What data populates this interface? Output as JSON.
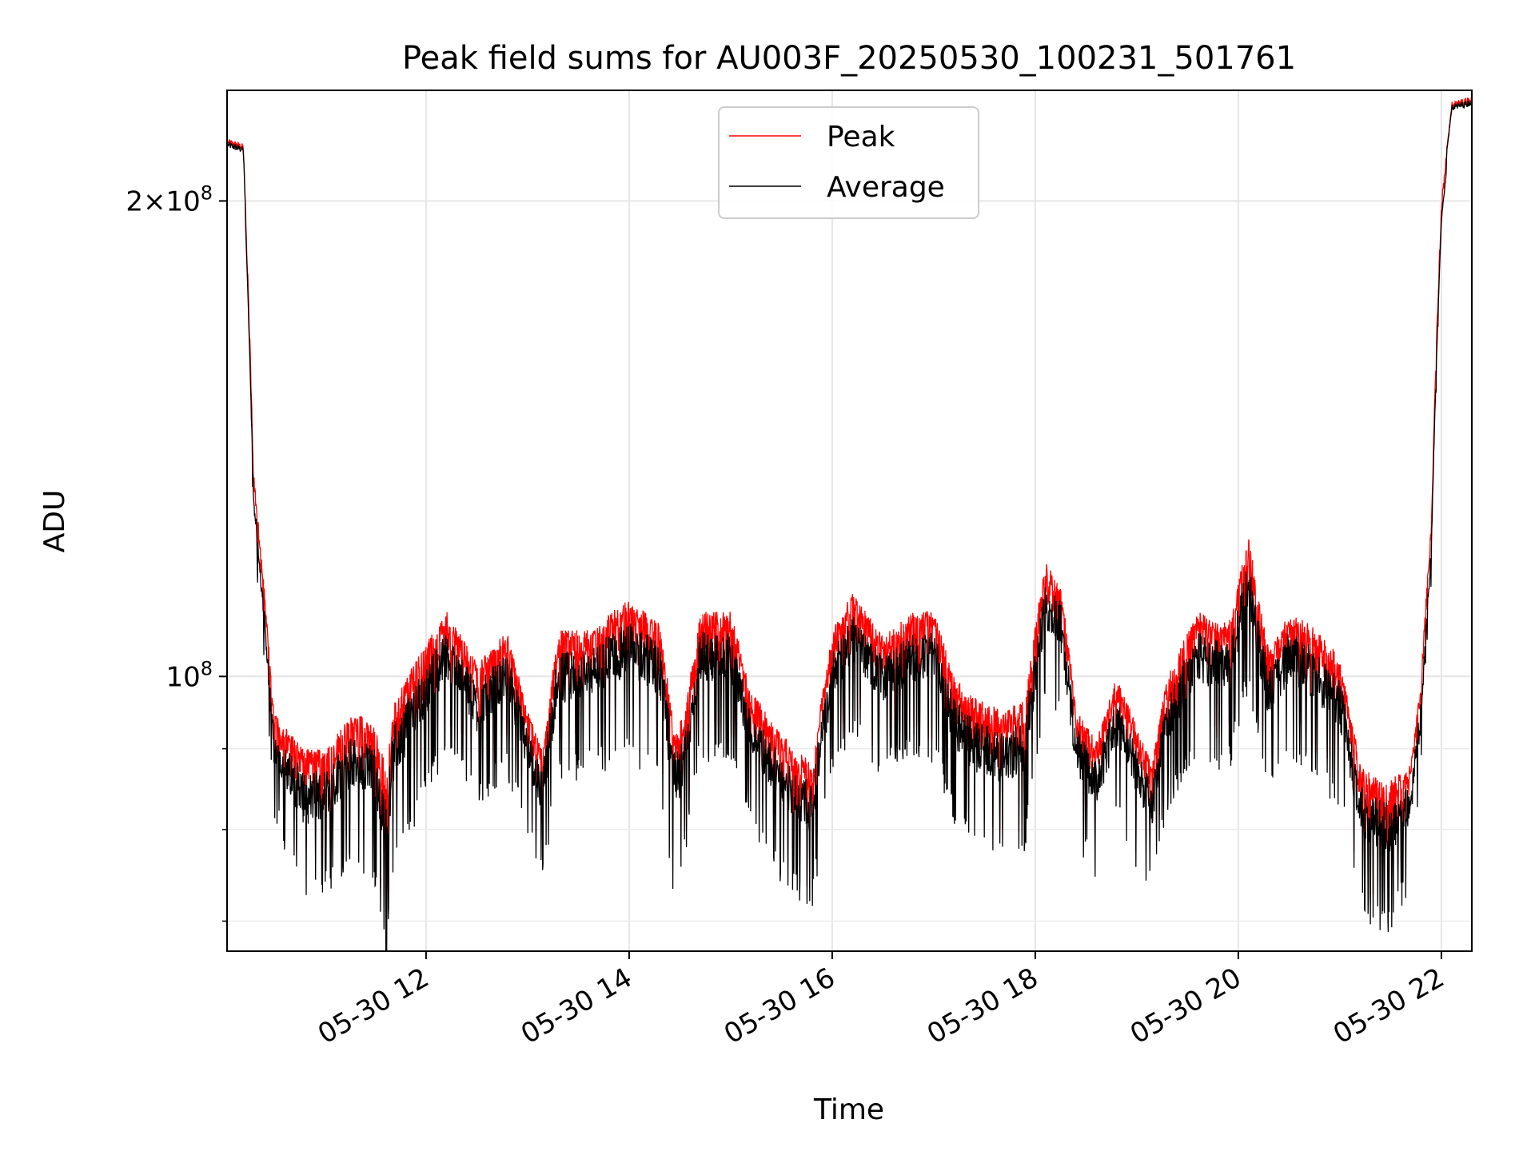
{
  "chart_data": {
    "type": "line",
    "title": "Peak field sums for AU003F_20250530_100231_501761",
    "xlabel": "Time",
    "ylabel": "ADU",
    "yscale": "log",
    "grid": true,
    "legend_position": "top-center",
    "xlim_hours": [
      10.04,
      22.3
    ],
    "ylim": [
      67000000,
      235000000
    ],
    "x_ticks": [
      {
        "value": 12,
        "label": "05-30 12"
      },
      {
        "value": 14,
        "label": "05-30 14"
      },
      {
        "value": 16,
        "label": "05-30 16"
      },
      {
        "value": 18,
        "label": "05-30 18"
      },
      {
        "value": 20,
        "label": "05-30 20"
      },
      {
        "value": 22,
        "label": "05-30 22"
      }
    ],
    "y_major_ticks": [
      {
        "value": 100000000,
        "base": "10",
        "exp": "8"
      },
      {
        "value": 200000000,
        "mant": "2",
        "base": "10",
        "exp": "8"
      }
    ],
    "y_minor_ticks": [
      70000000,
      80000000,
      90000000
    ],
    "series": [
      {
        "name": "Peak",
        "color": "#ff0000"
      },
      {
        "name": "Average",
        "color": "#000000"
      }
    ],
    "envelope": {
      "x": [
        10.05,
        10.2,
        10.3,
        10.5,
        10.8,
        11.0,
        11.3,
        11.5,
        11.6,
        11.7,
        12.0,
        12.2,
        12.5,
        12.8,
        13.0,
        13.15,
        13.3,
        13.6,
        14.0,
        14.3,
        14.45,
        14.55,
        14.7,
        15.0,
        15.2,
        15.5,
        15.8,
        16.0,
        16.2,
        16.5,
        16.8,
        17.0,
        17.2,
        17.4,
        17.7,
        17.9,
        18.1,
        18.25,
        18.4,
        18.6,
        18.8,
        19.0,
        19.15,
        19.3,
        19.6,
        19.9,
        20.1,
        20.2,
        20.3,
        20.5,
        20.7,
        21.0,
        21.2,
        21.4,
        21.5,
        21.7,
        21.8,
        21.9,
        22.0,
        22.1,
        22.3
      ],
      "peak_hi": [
        219000000,
        217000000,
        135000000,
        95000000,
        90000000,
        90000000,
        95000000,
        93000000,
        88000000,
        97000000,
        105000000,
        110000000,
        102000000,
        107000000,
        95000000,
        90000000,
        107000000,
        107000000,
        112000000,
        108000000,
        92000000,
        95000000,
        110000000,
        110000000,
        98000000,
        92000000,
        88000000,
        107000000,
        113000000,
        106000000,
        110000000,
        110000000,
        100000000,
        97000000,
        95000000,
        97000000,
        118000000,
        115000000,
        96000000,
        91000000,
        100000000,
        93000000,
        88000000,
        100000000,
        110000000,
        108000000,
        123000000,
        112000000,
        104000000,
        110000000,
        108000000,
        103000000,
        88000000,
        86000000,
        86000000,
        88000000,
        100000000,
        125000000,
        200000000,
        230000000,
        232000000
      ],
      "avg_lo": [
        215000000,
        214000000,
        125000000,
        83000000,
        72000000,
        74000000,
        77000000,
        75000000,
        67000000,
        77000000,
        85000000,
        91000000,
        84000000,
        88000000,
        80000000,
        75000000,
        87000000,
        88000000,
        90000000,
        87000000,
        72000000,
        78000000,
        90000000,
        90000000,
        82000000,
        75000000,
        72000000,
        88000000,
        93000000,
        88000000,
        90000000,
        90000000,
        82000000,
        78000000,
        77000000,
        79000000,
        98000000,
        95000000,
        79000000,
        76000000,
        82000000,
        77000000,
        74000000,
        83000000,
        90000000,
        88000000,
        100000000,
        92000000,
        86000000,
        90000000,
        88000000,
        84000000,
        72000000,
        70000000,
        70000000,
        75000000,
        88000000,
        115000000,
        195000000,
        228000000,
        230000000
      ]
    }
  }
}
